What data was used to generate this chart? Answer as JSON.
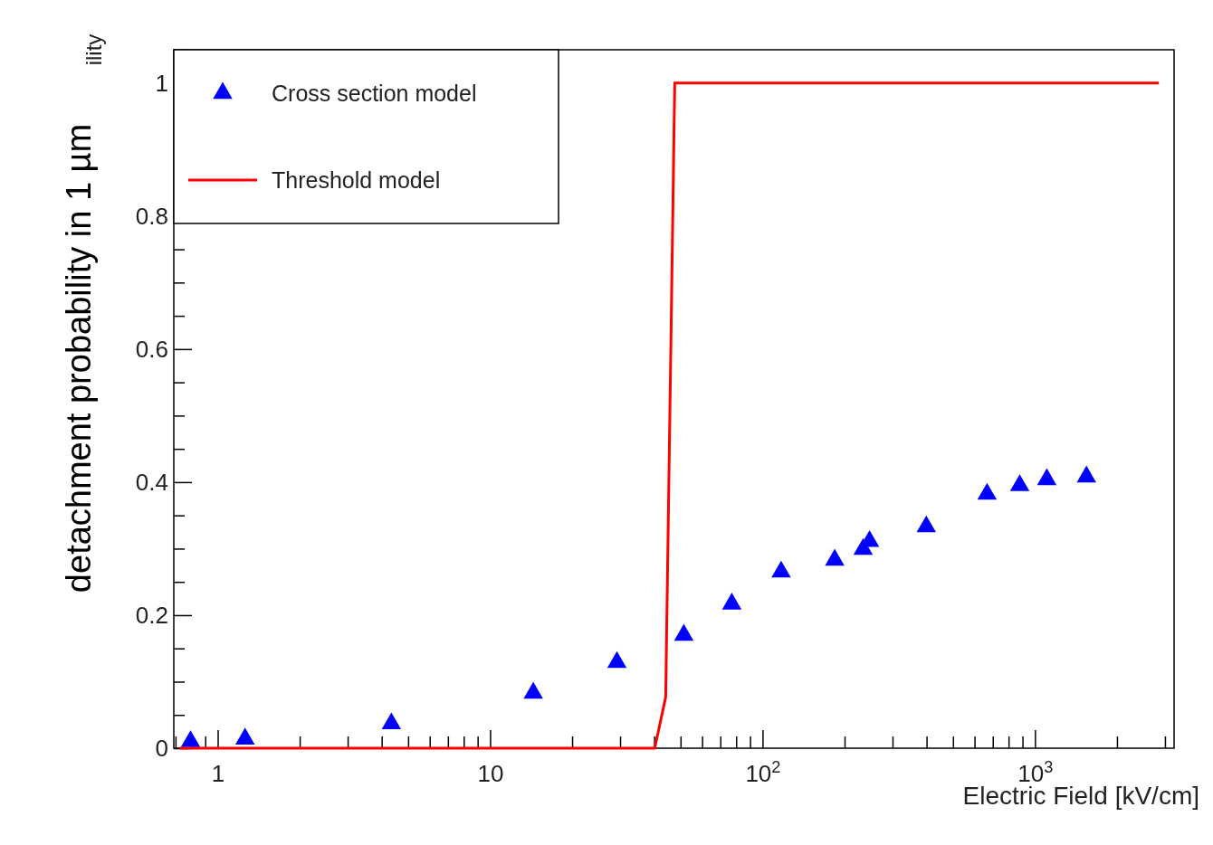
{
  "chart_data": {
    "type": "scatter",
    "xlabel": "Electric Field [kV/cm]",
    "ylabel": "detachment probability in 1 µm",
    "annotations": [
      "ility"
    ],
    "log": "x",
    "xlim": [
      0.69,
      3240
    ],
    "ylim": [
      0,
      1.05
    ],
    "xticks": [
      {
        "value": 0.7,
        "label": null
      },
      {
        "value": 0.8,
        "label": null
      },
      {
        "value": 0.9,
        "label": null
      },
      1,
      {
        "value": 2,
        "label": null
      },
      {
        "value": 3,
        "label": null
      },
      {
        "value": 4,
        "label": null
      },
      {
        "value": 5,
        "label": null
      },
      {
        "value": 6,
        "label": null
      },
      {
        "value": 7,
        "label": null
      },
      {
        "value": 8,
        "label": null
      },
      {
        "value": 9,
        "label": null
      },
      10,
      {
        "value": 20,
        "label": null
      },
      {
        "value": 30,
        "label": null
      },
      {
        "value": 40,
        "label": null
      },
      {
        "value": 50,
        "label": null
      },
      {
        "value": 60,
        "label": null
      },
      {
        "value": 70,
        "label": null
      },
      {
        "value": 80,
        "label": null
      },
      {
        "value": 90,
        "label": null
      },
      {
        "value": 100,
        "label": "10$^{2}$"
      },
      {
        "value": 200,
        "label": null
      },
      {
        "value": 300,
        "label": null
      },
      {
        "value": 400,
        "label": null
      },
      {
        "value": 500,
        "label": null
      },
      {
        "value": 600,
        "label": null
      },
      {
        "value": 700,
        "label": null
      },
      {
        "value": 800,
        "label": null
      },
      {
        "value": 900,
        "label": null
      },
      {
        "value": 1000,
        "label": "10$^{3}$"
      },
      {
        "value": 2000,
        "label": null
      },
      {
        "value": 3000,
        "label": null
      }
    ],
    "yticks": [
      0,
      {
        "value": 0.05,
        "label": null
      },
      {
        "value": 0.1,
        "label": null
      },
      {
        "value": 0.15,
        "label": null
      },
      0.2,
      {
        "value": 0.25,
        "label": null
      },
      {
        "value": 0.3,
        "label": null
      },
      {
        "value": 0.35,
        "label": null
      },
      0.4,
      {
        "value": 0.45,
        "label": null
      },
      {
        "value": 0.5,
        "label": null
      },
      {
        "value": 0.55,
        "label": null
      },
      0.6,
      {
        "value": 0.65,
        "label": null
      },
      {
        "value": 0.7,
        "label": null
      },
      {
        "value": 0.75,
        "label": null
      },
      0.8,
      {
        "value": 0.85,
        "label": null
      },
      {
        "value": 0.9,
        "label": null
      },
      {
        "value": 0.95,
        "label": null
      },
      1,
      {
        "value": 1.05,
        "label": null
      }
    ],
    "grid": false,
    "legend": "top left",
    "series": [
      {
        "name": "Cross section model",
        "type": "scatter",
        "marker": "triangle",
        "color": "#0000ff",
        "x": [
          0.795,
          1.26,
          4.34,
          14.4,
          29.2,
          51.4,
          77.1,
          117,
          184,
          234,
          247,
          399,
          667,
          879,
          1105,
          1545
        ],
        "values": [
          0.01,
          0.014,
          0.037,
          0.083,
          0.129,
          0.17,
          0.217,
          0.265,
          0.283,
          0.299,
          0.311,
          0.333,
          0.382,
          0.395,
          0.404,
          0.408
        ]
      },
      {
        "name": "Threshold model",
        "type": "line",
        "marker": "none",
        "line_style": "solid",
        "color": "#ff0000",
        "x": [
          0.725,
          40.2,
          44.1,
          47.6,
          2850
        ],
        "values": [
          0,
          0,
          0.077,
          1,
          1
        ]
      }
    ]
  }
}
